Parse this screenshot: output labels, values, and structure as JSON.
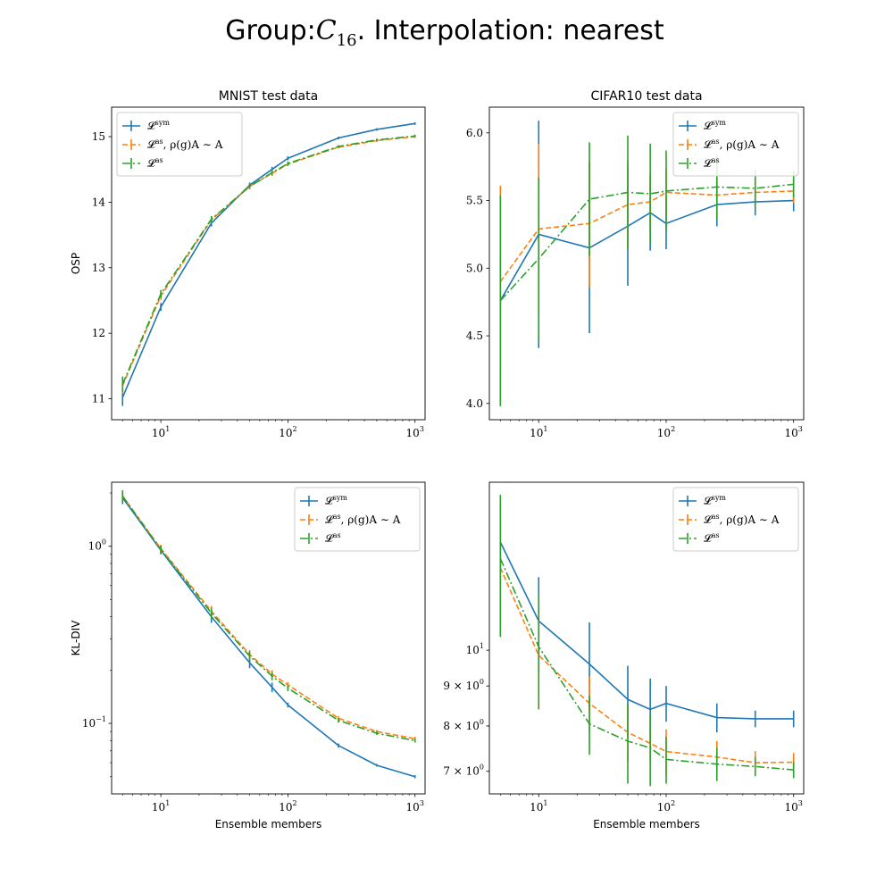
{
  "figure": {
    "title": "Group:C16. Interpolation: nearest",
    "title_parts": {
      "prefix": "Group:",
      "symbol": "C",
      "subscript": "16",
      "suffix": ". Interpolation: nearest"
    }
  },
  "series_styles": [
    {
      "key": "sym",
      "color": "#1f77b4",
      "dash": ""
    },
    {
      "key": "as_rho",
      "color": "#ff7f0e",
      "dash": "6,3"
    },
    {
      "key": "as",
      "color": "#2ca02c",
      "dash": "9,3,2,3"
    }
  ],
  "legend_entries": [
    {
      "main": "𝓛",
      "sup": "sym",
      "rest": ""
    },
    {
      "main": "𝓛",
      "sup": "as",
      "rest": ", ρ(g)A ∼ A"
    },
    {
      "main": "𝓛",
      "sup": "as",
      "rest": ""
    }
  ],
  "chart_data": [
    {
      "type": "line",
      "title": "MNIST test data",
      "xlabel": "",
      "ylabel": "OSP",
      "xscale": "log",
      "yscale": "linear",
      "xlim": [
        4.1,
        1200
      ],
      "ylim": [
        10.68,
        15.45
      ],
      "xticks": [
        {
          "v": 10,
          "b": "10",
          "e": "1"
        },
        {
          "v": 100,
          "b": "10",
          "e": "2"
        },
        {
          "v": 1000,
          "b": "10",
          "e": "3"
        }
      ],
      "yticks": [
        {
          "v": 11,
          "t": "11"
        },
        {
          "v": 12,
          "t": "12"
        },
        {
          "v": 13,
          "t": "13"
        },
        {
          "v": 14,
          "t": "14"
        },
        {
          "v": 15,
          "t": "15"
        }
      ],
      "legend": "upper-left",
      "x": [
        5,
        10,
        25,
        50,
        75,
        100,
        250,
        500,
        1000
      ],
      "series": [
        {
          "values": [
            11.02,
            12.4,
            13.68,
            14.26,
            14.5,
            14.67,
            14.98,
            15.11,
            15.2
          ],
          "err": [
            0.13,
            0.06,
            0.05,
            0.04,
            0.04,
            0.03,
            0.02,
            0.02,
            0.02
          ]
        },
        {
          "values": [
            11.2,
            12.57,
            13.73,
            14.24,
            14.44,
            14.58,
            14.84,
            14.94,
            15.0
          ],
          "err": [
            0.12,
            0.06,
            0.05,
            0.04,
            0.04,
            0.03,
            0.02,
            0.02,
            0.02
          ]
        },
        {
          "values": [
            11.22,
            12.6,
            13.74,
            14.24,
            14.45,
            14.59,
            14.85,
            14.95,
            15.01
          ],
          "err": [
            0.12,
            0.06,
            0.05,
            0.04,
            0.04,
            0.03,
            0.02,
            0.02,
            0.02
          ]
        }
      ]
    },
    {
      "type": "line",
      "title": "CIFAR10 test data",
      "xlabel": "",
      "ylabel": "",
      "xscale": "log",
      "yscale": "linear",
      "xlim": [
        4.1,
        1200
      ],
      "ylim": [
        3.88,
        6.19
      ],
      "xticks": [
        {
          "v": 10,
          "b": "10",
          "e": "1"
        },
        {
          "v": 100,
          "b": "10",
          "e": "2"
        },
        {
          "v": 1000,
          "b": "10",
          "e": "3"
        }
      ],
      "yticks": [
        {
          "v": 4.0,
          "t": "4.0"
        },
        {
          "v": 4.5,
          "t": "4.5"
        },
        {
          "v": 5.0,
          "t": "5.0"
        },
        {
          "v": 5.5,
          "t": "5.5"
        },
        {
          "v": 6.0,
          "t": "6.0"
        }
      ],
      "legend": "upper-right",
      "x": [
        5,
        10,
        25,
        50,
        75,
        100,
        250,
        500,
        1000
      ],
      "series": [
        {
          "values": [
            4.76,
            5.25,
            5.15,
            5.31,
            5.41,
            5.33,
            5.47,
            5.49,
            5.5
          ],
          "err": [
            0.04,
            0.84,
            0.63,
            0.44,
            0.28,
            0.19,
            0.16,
            0.1,
            0.08
          ]
        },
        {
          "values": [
            4.9,
            5.29,
            5.33,
            5.47,
            5.49,
            5.56,
            5.54,
            5.56,
            5.57
          ],
          "err": [
            0.71,
            0.63,
            0.47,
            0.33,
            0.2,
            0.17,
            0.13,
            0.1,
            0.09
          ]
        },
        {
          "values": [
            4.76,
            5.07,
            5.51,
            5.56,
            5.55,
            5.57,
            5.6,
            5.59,
            5.62
          ],
          "err": [
            0.78,
            0.6,
            0.42,
            0.42,
            0.37,
            0.3,
            0.24,
            0.14,
            0.1
          ]
        }
      ]
    },
    {
      "type": "line",
      "title": "",
      "xlabel": "Ensemble members",
      "ylabel": "KL-DIV",
      "xscale": "log",
      "yscale": "log",
      "xlim": [
        4.1,
        1200
      ],
      "ylim": [
        0.04,
        2.3
      ],
      "xticks": [
        {
          "v": 10,
          "b": "10",
          "e": "1"
        },
        {
          "v": 100,
          "b": "10",
          "e": "2"
        },
        {
          "v": 1000,
          "b": "10",
          "e": "3"
        }
      ],
      "yticks": [
        {
          "v": 1.0,
          "b": "10",
          "e": "0"
        },
        {
          "v": 0.1,
          "b": "10",
          "e": "−1"
        }
      ],
      "legend": "upper-right",
      "x": [
        5,
        10,
        25,
        50,
        75,
        100,
        250,
        500,
        1000
      ],
      "series": [
        {
          "values": [
            1.88,
            0.95,
            0.4,
            0.22,
            0.16,
            0.127,
            0.075,
            0.058,
            0.05
          ],
          "err": [
            0.15,
            0.05,
            0.03,
            0.015,
            0.01,
            0.004,
            0.002,
            0.001,
            0.001
          ]
        },
        {
          "values": [
            1.92,
            0.97,
            0.43,
            0.245,
            0.19,
            0.165,
            0.107,
            0.09,
            0.082
          ],
          "err": [
            0.15,
            0.05,
            0.03,
            0.015,
            0.01,
            0.006,
            0.003,
            0.002,
            0.002
          ]
        },
        {
          "values": [
            1.92,
            0.96,
            0.42,
            0.24,
            0.185,
            0.158,
            0.104,
            0.088,
            0.08
          ],
          "err": [
            0.15,
            0.05,
            0.03,
            0.015,
            0.01,
            0.006,
            0.003,
            0.002,
            0.002
          ]
        }
      ]
    },
    {
      "type": "line",
      "title": "",
      "xlabel": "Ensemble members",
      "ylabel": "",
      "xscale": "log",
      "yscale": "log",
      "xlim": [
        4.1,
        1200
      ],
      "ylim": [
        6.55,
        16.4
      ],
      "xticks": [
        {
          "v": 10,
          "b": "10",
          "e": "1"
        },
        {
          "v": 100,
          "b": "10",
          "e": "2"
        },
        {
          "v": 1000,
          "b": "10",
          "e": "3"
        }
      ],
      "yticks": [
        {
          "v": 7,
          "b": "7 × 10",
          "e": "0"
        },
        {
          "v": 8,
          "b": "8 × 10",
          "e": "0"
        },
        {
          "v": 9,
          "b": "9 × 10",
          "e": "0"
        },
        {
          "v": 10,
          "b": "10",
          "e": "1"
        }
      ],
      "legend": "upper-right",
      "x": [
        5,
        10,
        25,
        50,
        75,
        100,
        250,
        500,
        1000
      ],
      "series": [
        {
          "values": [
            13.75,
            10.9,
            9.6,
            8.65,
            8.4,
            8.55,
            8.2,
            8.17,
            8.17
          ],
          "err": [
            1.0,
            1.5,
            1.25,
            0.9,
            0.8,
            0.45,
            0.35,
            0.2,
            0.2
          ]
        },
        {
          "values": [
            12.75,
            9.85,
            8.55,
            7.85,
            7.6,
            7.42,
            7.3,
            7.18,
            7.19
          ],
          "err": [
            0.9,
            1.45,
            0.7,
            0.65,
            0.4,
            0.5,
            0.35,
            0.25,
            0.2
          ]
        },
        {
          "values": [
            13.1,
            10.1,
            8.05,
            7.65,
            7.5,
            7.25,
            7.15,
            7.1,
            7.03
          ],
          "err": [
            2.7,
            1.7,
            0.7,
            0.9,
            0.8,
            0.5,
            0.35,
            0.2,
            0.17
          ]
        }
      ]
    }
  ]
}
